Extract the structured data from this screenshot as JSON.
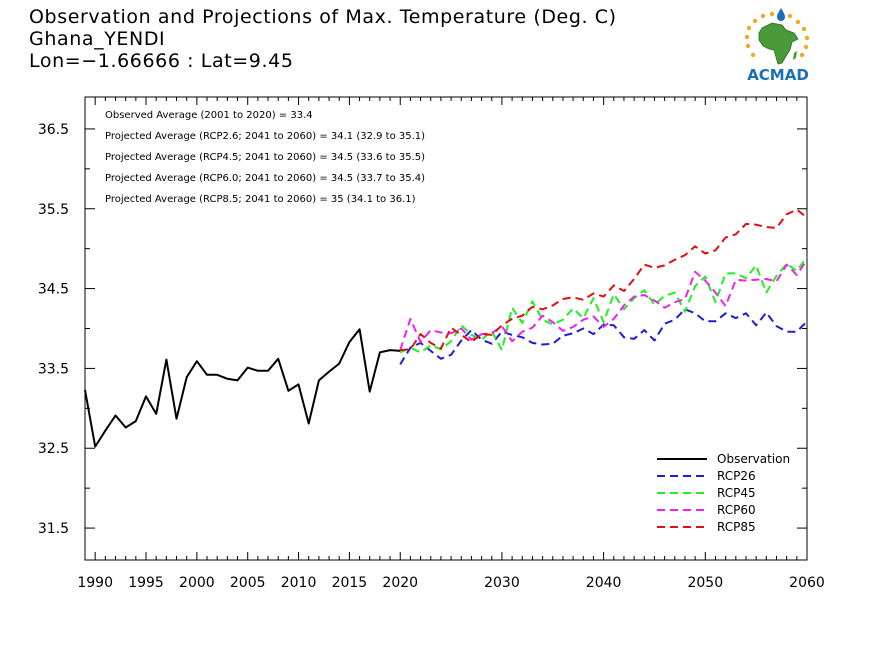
{
  "title_lines": [
    "Observation and Projections of Max. Temperature (Deg. C)",
    "Ghana_YENDI",
    "Lon=−1.66666 : Lat=9.45"
  ],
  "logo_text": "ACMAD",
  "colors": {
    "observation": "#000000",
    "rcp26": "#1f1fd0",
    "rcp45": "#22ee22",
    "rcp60": "#ee22ee",
    "rcp85": "#dd1111",
    "logo_text": "#1a6fb5",
    "logo_africa": "#4a9a3a",
    "logo_sun": "#f2a825"
  },
  "chart_data": {
    "type": "line",
    "title": "Observation and Projections of Max. Temperature (Deg. C)",
    "xlim": [
      1989,
      2060
    ],
    "ylim": [
      31.1,
      36.9
    ],
    "x_ticks": [
      1990,
      1995,
      2000,
      2005,
      2010,
      2015,
      2020,
      2030,
      2040,
      2050,
      2060
    ],
    "y_ticks": [
      31.5,
      32.5,
      33.5,
      34.5,
      35.5,
      36.5
    ],
    "grid": false,
    "legend_position": "bottom-right",
    "annotations": [
      "Observed Average (2001 to 2020) = 33.4",
      "Projected Average (RCP2.6; 2041 to 2060) = 34.1 (32.9 to 35.1)",
      "Projected Average (RCP4.5; 2041 to 2060) = 34.5 (33.6 to 35.5)",
      "Projected Average (RCP6.0; 2041 to 2060) = 34.5 (33.7 to 35.4)",
      "Projected Average (RCP8.5; 2041 to 2060) = 35 (34.1 to 36.1)"
    ],
    "series": [
      {
        "name": "Observation",
        "style": "solid",
        "x": [
          1989,
          1990,
          1991,
          1992,
          1993,
          1994,
          1995,
          1996,
          1997,
          1998,
          1999,
          2000,
          2001,
          2002,
          2003,
          2004,
          2005,
          2006,
          2007,
          2008,
          2009,
          2010,
          2011,
          2012,
          2013,
          2014,
          2015,
          2016,
          2017,
          2018,
          2019,
          2020
        ],
        "values": [
          33.23,
          32.52,
          32.72,
          32.91,
          32.76,
          32.84,
          33.15,
          32.93,
          33.61,
          32.87,
          33.39,
          33.59,
          33.42,
          33.42,
          33.37,
          33.35,
          33.51,
          33.47,
          33.47,
          33.62,
          33.22,
          33.3,
          32.81,
          33.35,
          33.46,
          33.56,
          33.83,
          33.99,
          33.21,
          33.7,
          33.73,
          33.72
        ]
      },
      {
        "name": "RCP26",
        "style": "dashed",
        "x": [
          2020,
          2021,
          2022,
          2023,
          2024,
          2025,
          2026,
          2027,
          2028,
          2029,
          2030,
          2031,
          2032,
          2033,
          2034,
          2035,
          2036,
          2037,
          2038,
          2039,
          2040,
          2041,
          2042,
          2043,
          2044,
          2045,
          2046,
          2047,
          2048,
          2049,
          2050,
          2051,
          2052,
          2053,
          2054,
          2055,
          2056,
          2057,
          2058,
          2059,
          2060
        ],
        "values": [
          33.55,
          33.76,
          33.82,
          33.72,
          33.62,
          33.67,
          33.85,
          33.98,
          33.86,
          33.81,
          33.96,
          33.92,
          33.89,
          33.82,
          33.8,
          33.81,
          33.91,
          33.94,
          34.0,
          33.93,
          34.05,
          34.04,
          33.89,
          33.87,
          33.98,
          33.85,
          34.06,
          34.11,
          34.24,
          34.19,
          34.09,
          34.09,
          34.19,
          34.13,
          34.19,
          34.04,
          34.2,
          34.03,
          33.96,
          33.96,
          34.09
        ]
      },
      {
        "name": "RCP45",
        "style": "dashed",
        "x": [
          2020,
          2021,
          2022,
          2023,
          2024,
          2025,
          2026,
          2027,
          2028,
          2029,
          2030,
          2031,
          2032,
          2033,
          2034,
          2035,
          2036,
          2037,
          2038,
          2039,
          2040,
          2041,
          2042,
          2043,
          2044,
          2045,
          2046,
          2047,
          2048,
          2049,
          2050,
          2051,
          2052,
          2053,
          2054,
          2055,
          2056,
          2057,
          2058,
          2059,
          2060
        ],
        "values": [
          33.7,
          33.76,
          33.7,
          33.79,
          33.74,
          33.84,
          34.04,
          33.92,
          33.86,
          33.97,
          33.73,
          34.26,
          34.07,
          34.34,
          34.11,
          34.05,
          34.11,
          34.25,
          34.13,
          34.38,
          34.08,
          34.43,
          34.24,
          34.38,
          34.48,
          34.3,
          34.41,
          34.45,
          34.21,
          34.53,
          34.65,
          34.33,
          34.69,
          34.69,
          34.63,
          34.79,
          34.45,
          34.66,
          34.81,
          34.72,
          34.9
        ]
      },
      {
        "name": "RCP60",
        "style": "dashed",
        "x": [
          2020,
          2021,
          2022,
          2023,
          2024,
          2025,
          2026,
          2027,
          2028,
          2029,
          2030,
          2031,
          2032,
          2033,
          2034,
          2035,
          2036,
          2037,
          2038,
          2039,
          2040,
          2041,
          2042,
          2043,
          2044,
          2045,
          2046,
          2047,
          2048,
          2049,
          2050,
          2051,
          2052,
          2053,
          2054,
          2055,
          2056,
          2057,
          2058,
          2059,
          2060
        ],
        "values": [
          33.73,
          34.12,
          33.83,
          33.98,
          33.95,
          33.94,
          34.0,
          33.86,
          33.93,
          33.94,
          34.03,
          33.84,
          33.96,
          34.01,
          34.16,
          34.08,
          33.97,
          34.02,
          34.11,
          34.15,
          34.02,
          34.12,
          34.29,
          34.4,
          34.42,
          34.35,
          34.26,
          34.33,
          34.37,
          34.71,
          34.6,
          34.45,
          34.28,
          34.61,
          34.6,
          34.61,
          34.62,
          34.59,
          34.8,
          34.67,
          34.86
        ]
      },
      {
        "name": "RCP85",
        "style": "dashed",
        "x": [
          2020,
          2021,
          2022,
          2023,
          2024,
          2025,
          2026,
          2027,
          2028,
          2029,
          2030,
          2031,
          2032,
          2033,
          2034,
          2035,
          2036,
          2037,
          2038,
          2039,
          2040,
          2041,
          2042,
          2043,
          2044,
          2045,
          2046,
          2047,
          2048,
          2049,
          2050,
          2051,
          2052,
          2053,
          2054,
          2055,
          2056,
          2057,
          2058,
          2059,
          2060
        ],
        "values": [
          33.73,
          33.74,
          33.93,
          33.82,
          33.75,
          34.01,
          33.92,
          33.83,
          33.93,
          33.92,
          34.04,
          34.12,
          34.16,
          34.27,
          34.24,
          34.29,
          34.37,
          34.39,
          34.36,
          34.44,
          34.4,
          34.54,
          34.47,
          34.62,
          34.8,
          34.76,
          34.79,
          34.86,
          34.92,
          35.03,
          34.94,
          34.98,
          35.14,
          35.18,
          35.31,
          35.3,
          35.27,
          35.26,
          35.43,
          35.49,
          35.39
        ]
      }
    ]
  }
}
